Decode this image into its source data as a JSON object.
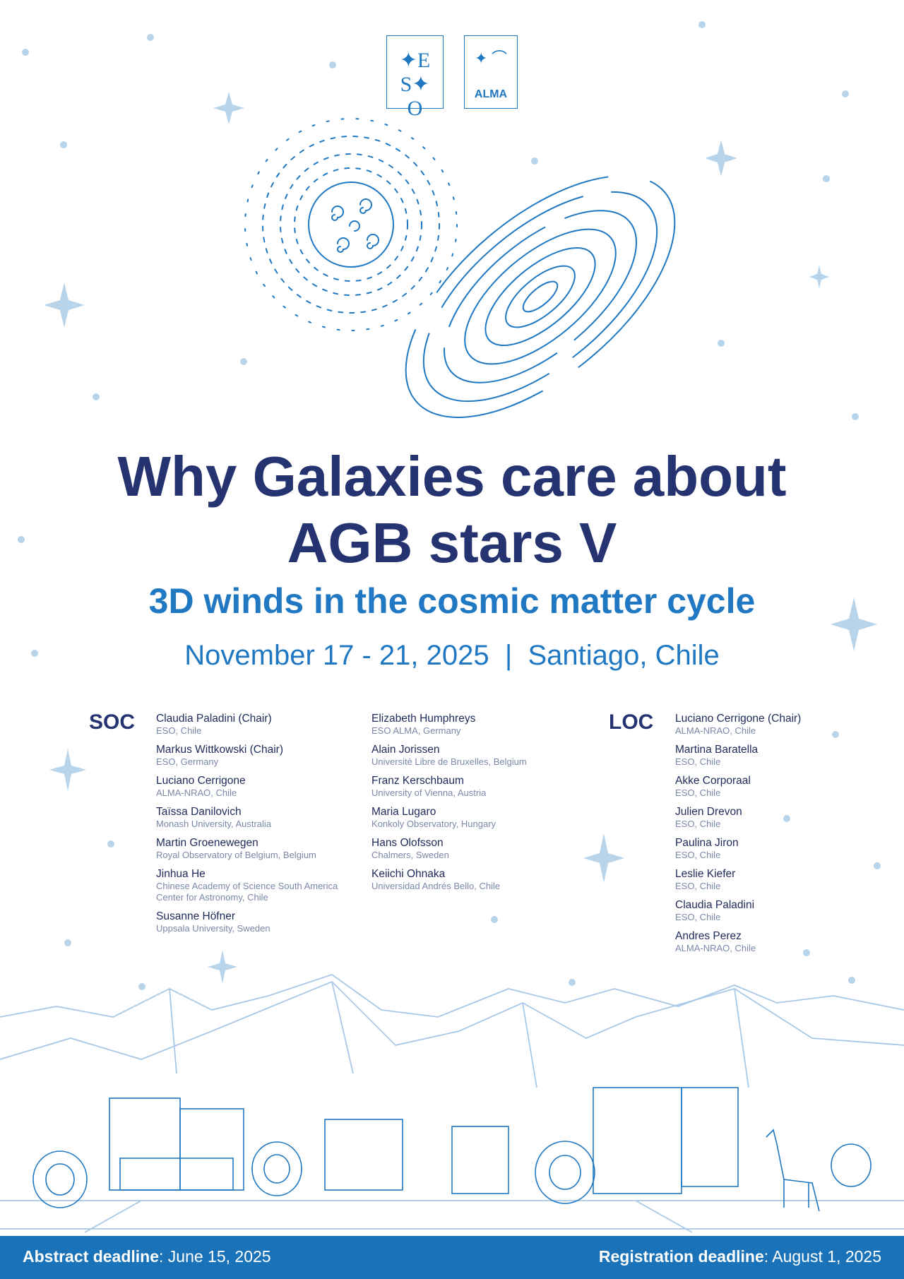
{
  "logos": {
    "eso": "ESO",
    "alma": "ALMA"
  },
  "title": {
    "line1": "Why Galaxies care about",
    "line2": "AGB stars V"
  },
  "subtitle": "3D winds in the cosmic matter cycle",
  "date_location": "November 17 - 21, 2025  |  Santiago, Chile",
  "soc": {
    "label": "SOC",
    "col1": [
      {
        "name": "Claudia Paladini (Chair)",
        "affil": "ESO, Chile"
      },
      {
        "name": "Markus Wittkowski (Chair)",
        "affil": "ESO, Germany"
      },
      {
        "name": "Luciano Cerrigone",
        "affil": "ALMA-NRAO, Chile"
      },
      {
        "name": "Taïssa Danilovich",
        "affil": "Monash University, Australia"
      },
      {
        "name": "Martin Groenewegen",
        "affil": "Royal Observatory of Belgium, Belgium"
      },
      {
        "name": "Jinhua He",
        "affil": "Chinese Academy of Science South America Center for Astronomy, Chile"
      },
      {
        "name": "Susanne Höfner",
        "affil": "Uppsala University, Sweden"
      }
    ],
    "col2": [
      {
        "name": "Elizabeth Humphreys",
        "affil": "ESO ALMA, Germany"
      },
      {
        "name": "Alain Jorissen",
        "affil": "Universitè Libre de Bruxelles, Belgium"
      },
      {
        "name": "Franz Kerschbaum",
        "affil": "University of Vienna, Austria"
      },
      {
        "name": "Maria Lugaro",
        "affil": "Konkoly Observatory, Hungary"
      },
      {
        "name": "Hans Olofsson",
        "affil": "Chalmers, Sweden"
      },
      {
        "name": "Keiichi Ohnaka",
        "affil": "Universidad Andrés Bello, Chile"
      }
    ]
  },
  "loc": {
    "label": "LOC",
    "members": [
      {
        "name": "Luciano Cerrigone (Chair)",
        "affil": "ALMA-NRAO, Chile"
      },
      {
        "name": "Martina Baratella",
        "affil": "ESO, Chile"
      },
      {
        "name": "Akke Corporaal",
        "affil": "ESO, Chile"
      },
      {
        "name": "Julien Drevon",
        "affil": "ESO, Chile"
      },
      {
        "name": "Paulina Jiron",
        "affil": "ESO, Chile"
      },
      {
        "name": "Leslie Kiefer",
        "affil": "ESO, Chile"
      },
      {
        "name": "Claudia Paladini",
        "affil": "ESO, Chile"
      },
      {
        "name": "Andres Perez",
        "affil": "ALMA-NRAO, Chile"
      }
    ]
  },
  "footer": {
    "abstract_label": "Abstract deadline",
    "abstract_date": ": June 15, 2025",
    "registration_label": "Registration deadline",
    "registration_date": ": August 1, 2025"
  },
  "colors": {
    "navy": "#253370",
    "accent": "#1f78c1",
    "footer_bg": "#1a73b8",
    "stars": "#b8d4ea"
  }
}
